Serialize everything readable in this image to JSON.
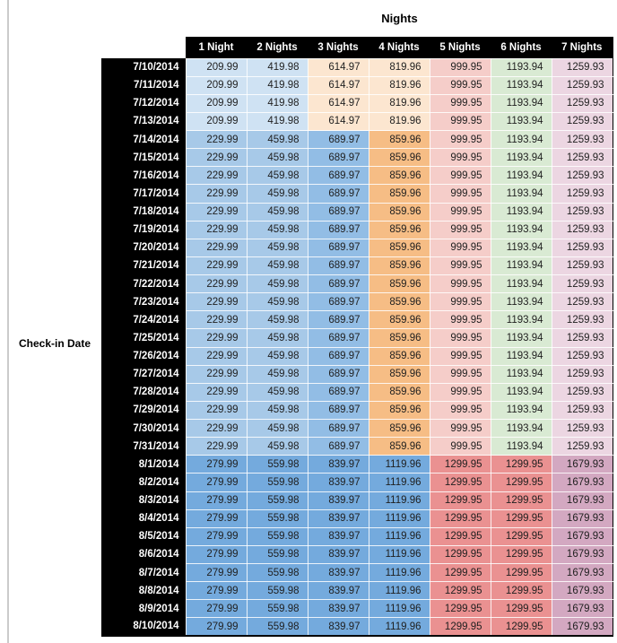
{
  "chart_data": {
    "type": "table",
    "title": "Nights",
    "row_header_label": "Check-in Date",
    "columns": [
      "1 Night",
      "2 Nights",
      "3 Nights",
      "4 Nights",
      "5 Nights",
      "6 Nights",
      "7 Nights"
    ],
    "band_colors": {
      "A": [
        "#cfe2f3",
        "#cfe2f3",
        "#fce6d0",
        "#fce6d0",
        "#f5cdc9",
        "#d9ead3",
        "#ecd6e2"
      ],
      "B": [
        "#a7c9e8",
        "#a7c9e8",
        "#92bde5",
        "#f6bd85",
        "#f5cdc9",
        "#d9ead3",
        "#ecd6e2"
      ],
      "C": [
        "#74aadd",
        "#74aadd",
        "#74aadd",
        "#74aadd",
        "#ea9191",
        "#ea9191",
        "#d3a8c1"
      ]
    },
    "header_bg": "#000000",
    "header_text_color": "#ffffff",
    "value_text_color": "#1f1f1f",
    "rows": [
      {
        "date": "7/10/2014",
        "band": "A",
        "values": [
          209.99,
          419.98,
          614.97,
          819.96,
          999.95,
          1193.94,
          1259.93
        ]
      },
      {
        "date": "7/11/2014",
        "band": "A",
        "values": [
          209.99,
          419.98,
          614.97,
          819.96,
          999.95,
          1193.94,
          1259.93
        ]
      },
      {
        "date": "7/12/2014",
        "band": "A",
        "values": [
          209.99,
          419.98,
          614.97,
          819.96,
          999.95,
          1193.94,
          1259.93
        ]
      },
      {
        "date": "7/13/2014",
        "band": "A",
        "values": [
          209.99,
          419.98,
          614.97,
          819.96,
          999.95,
          1193.94,
          1259.93
        ]
      },
      {
        "date": "7/14/2014",
        "band": "B",
        "values": [
          229.99,
          459.98,
          689.97,
          859.96,
          999.95,
          1193.94,
          1259.93
        ]
      },
      {
        "date": "7/15/2014",
        "band": "B",
        "values": [
          229.99,
          459.98,
          689.97,
          859.96,
          999.95,
          1193.94,
          1259.93
        ]
      },
      {
        "date": "7/16/2014",
        "band": "B",
        "values": [
          229.99,
          459.98,
          689.97,
          859.96,
          999.95,
          1193.94,
          1259.93
        ]
      },
      {
        "date": "7/17/2014",
        "band": "B",
        "values": [
          229.99,
          459.98,
          689.97,
          859.96,
          999.95,
          1193.94,
          1259.93
        ]
      },
      {
        "date": "7/18/2014",
        "band": "B",
        "values": [
          229.99,
          459.98,
          689.97,
          859.96,
          999.95,
          1193.94,
          1259.93
        ]
      },
      {
        "date": "7/19/2014",
        "band": "B",
        "values": [
          229.99,
          459.98,
          689.97,
          859.96,
          999.95,
          1193.94,
          1259.93
        ]
      },
      {
        "date": "7/20/2014",
        "band": "B",
        "values": [
          229.99,
          459.98,
          689.97,
          859.96,
          999.95,
          1193.94,
          1259.93
        ]
      },
      {
        "date": "7/21/2014",
        "band": "B",
        "values": [
          229.99,
          459.98,
          689.97,
          859.96,
          999.95,
          1193.94,
          1259.93
        ]
      },
      {
        "date": "7/22/2014",
        "band": "B",
        "values": [
          229.99,
          459.98,
          689.97,
          859.96,
          999.95,
          1193.94,
          1259.93
        ]
      },
      {
        "date": "7/23/2014",
        "band": "B",
        "values": [
          229.99,
          459.98,
          689.97,
          859.96,
          999.95,
          1193.94,
          1259.93
        ]
      },
      {
        "date": "7/24/2014",
        "band": "B",
        "values": [
          229.99,
          459.98,
          689.97,
          859.96,
          999.95,
          1193.94,
          1259.93
        ]
      },
      {
        "date": "7/25/2014",
        "band": "B",
        "values": [
          229.99,
          459.98,
          689.97,
          859.96,
          999.95,
          1193.94,
          1259.93
        ]
      },
      {
        "date": "7/26/2014",
        "band": "B",
        "values": [
          229.99,
          459.98,
          689.97,
          859.96,
          999.95,
          1193.94,
          1259.93
        ]
      },
      {
        "date": "7/27/2014",
        "band": "B",
        "values": [
          229.99,
          459.98,
          689.97,
          859.96,
          999.95,
          1193.94,
          1259.93
        ]
      },
      {
        "date": "7/28/2014",
        "band": "B",
        "values": [
          229.99,
          459.98,
          689.97,
          859.96,
          999.95,
          1193.94,
          1259.93
        ]
      },
      {
        "date": "7/29/2014",
        "band": "B",
        "values": [
          229.99,
          459.98,
          689.97,
          859.96,
          999.95,
          1193.94,
          1259.93
        ]
      },
      {
        "date": "7/30/2014",
        "band": "B",
        "values": [
          229.99,
          459.98,
          689.97,
          859.96,
          999.95,
          1193.94,
          1259.93
        ]
      },
      {
        "date": "7/31/2014",
        "band": "B",
        "values": [
          229.99,
          459.98,
          689.97,
          859.96,
          999.95,
          1193.94,
          1259.93
        ]
      },
      {
        "date": "8/1/2014",
        "band": "C",
        "values": [
          279.99,
          559.98,
          839.97,
          1119.96,
          1299.95,
          1299.95,
          1679.93
        ]
      },
      {
        "date": "8/2/2014",
        "band": "C",
        "values": [
          279.99,
          559.98,
          839.97,
          1119.96,
          1299.95,
          1299.95,
          1679.93
        ]
      },
      {
        "date": "8/3/2014",
        "band": "C",
        "values": [
          279.99,
          559.98,
          839.97,
          1119.96,
          1299.95,
          1299.95,
          1679.93
        ]
      },
      {
        "date": "8/4/2014",
        "band": "C",
        "values": [
          279.99,
          559.98,
          839.97,
          1119.96,
          1299.95,
          1299.95,
          1679.93
        ]
      },
      {
        "date": "8/5/2014",
        "band": "C",
        "values": [
          279.99,
          559.98,
          839.97,
          1119.96,
          1299.95,
          1299.95,
          1679.93
        ]
      },
      {
        "date": "8/6/2014",
        "band": "C",
        "values": [
          279.99,
          559.98,
          839.97,
          1119.96,
          1299.95,
          1299.95,
          1679.93
        ]
      },
      {
        "date": "8/7/2014",
        "band": "C",
        "values": [
          279.99,
          559.98,
          839.97,
          1119.96,
          1299.95,
          1299.95,
          1679.93
        ]
      },
      {
        "date": "8/8/2014",
        "band": "C",
        "values": [
          279.99,
          559.98,
          839.97,
          1119.96,
          1299.95,
          1299.95,
          1679.93
        ]
      },
      {
        "date": "8/9/2014",
        "band": "C",
        "values": [
          279.99,
          559.98,
          839.97,
          1119.96,
          1299.95,
          1299.95,
          1679.93
        ]
      },
      {
        "date": "8/10/2014",
        "band": "C",
        "values": [
          279.99,
          559.98,
          839.97,
          1119.96,
          1299.95,
          1299.95,
          1679.93
        ]
      }
    ]
  }
}
